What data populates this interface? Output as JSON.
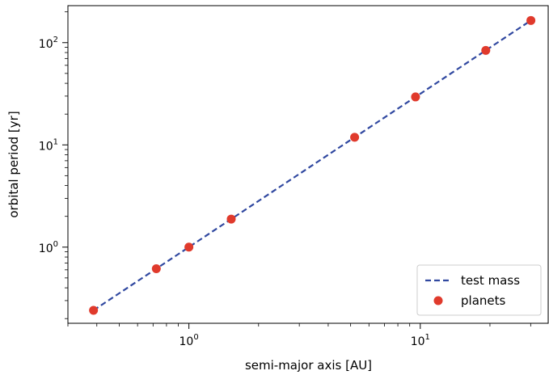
{
  "chart_data": {
    "type": "scatter",
    "xlabel": "semi-major axis [AU]",
    "ylabel": "orbital period [yr]",
    "xscale": "log",
    "yscale": "log",
    "xlim": [
      0.3,
      36
    ],
    "ylim": [
      0.18,
      230
    ],
    "grid": false,
    "legend_position": "lower-right",
    "x_ticks": [
      {
        "value": 1,
        "base": "10",
        "exp": "0"
      },
      {
        "value": 10,
        "base": "10",
        "exp": "1"
      }
    ],
    "y_ticks": [
      {
        "value": 1,
        "base": "10",
        "exp": "0"
      },
      {
        "value": 10,
        "base": "10",
        "exp": "1"
      },
      {
        "value": 100,
        "base": "10",
        "exp": "2"
      }
    ],
    "series": [
      {
        "name": "test mass",
        "kind": "line",
        "style": "dashed",
        "color": "#3048a0",
        "x": [
          0.387,
          30.07
        ],
        "y": [
          0.241,
          164.8
        ]
      },
      {
        "name": "planets",
        "kind": "scatter",
        "color": "#e03a2c",
        "x": [
          0.387,
          0.723,
          1.0,
          1.524,
          5.203,
          9.537,
          19.19,
          30.07
        ],
        "y": [
          0.241,
          0.615,
          1.0,
          1.881,
          11.86,
          29.45,
          84.02,
          164.8
        ]
      }
    ]
  }
}
